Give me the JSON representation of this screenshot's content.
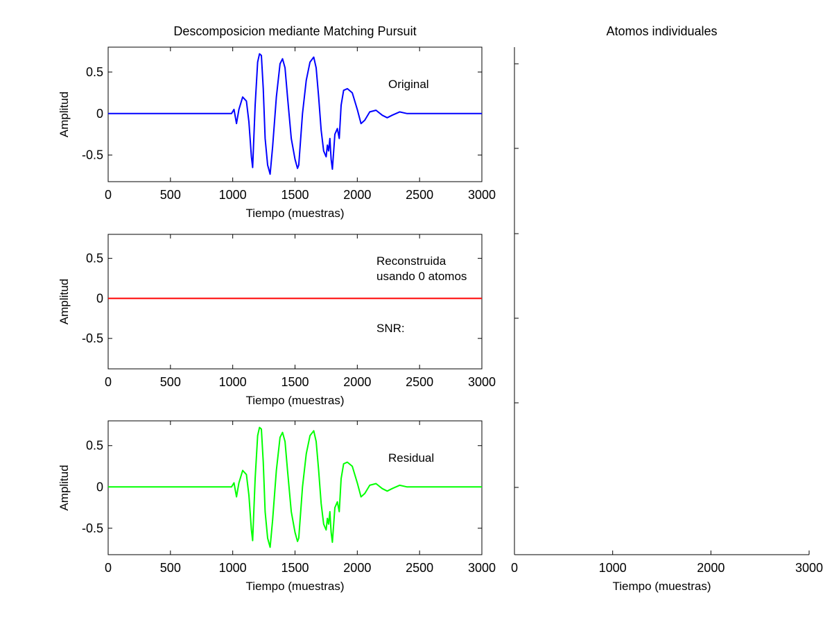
{
  "chart_data": [
    {
      "type": "line",
      "title": "Descomposicion mediante Matching Pursuit",
      "xlabel": "Tiempo (muestras)",
      "ylabel": "Amplitud",
      "xlim": [
        0,
        3000
      ],
      "ylim": [
        -0.82,
        0.8
      ],
      "xticks": [
        "0",
        "500",
        "1000",
        "1500",
        "2000",
        "2500",
        "3000"
      ],
      "yticks": [
        "0.5",
        "0",
        "-0.5"
      ],
      "annotations": [
        "Original"
      ],
      "series": [
        {
          "color": "#0000ff",
          "x": [
            0,
            950,
            990,
            1010,
            1030,
            1050,
            1080,
            1110,
            1130,
            1150,
            1160,
            1180,
            1200,
            1215,
            1230,
            1245,
            1260,
            1280,
            1300,
            1320,
            1350,
            1380,
            1400,
            1420,
            1440,
            1470,
            1500,
            1520,
            1530,
            1560,
            1590,
            1620,
            1650,
            1670,
            1690,
            1710,
            1730,
            1750,
            1760,
            1770,
            1780,
            1790,
            1800,
            1820,
            1840,
            1855,
            1870,
            1890,
            1920,
            1960,
            2000,
            2030,
            2060,
            2100,
            2150,
            2200,
            2240,
            2280,
            2340,
            2400,
            2500,
            3000
          ],
          "y": [
            0,
            0,
            0.0,
            0.05,
            -0.12,
            0.05,
            0.2,
            0.15,
            -0.1,
            -0.52,
            -0.65,
            0.1,
            0.62,
            0.72,
            0.7,
            0.3,
            -0.3,
            -0.62,
            -0.73,
            -0.4,
            0.2,
            0.6,
            0.66,
            0.55,
            0.2,
            -0.3,
            -0.55,
            -0.66,
            -0.62,
            0.0,
            0.4,
            0.62,
            0.68,
            0.55,
            0.2,
            -0.2,
            -0.45,
            -0.52,
            -0.38,
            -0.45,
            -0.3,
            -0.55,
            -0.67,
            -0.25,
            -0.18,
            -0.3,
            0.1,
            0.28,
            0.3,
            0.25,
            0.05,
            -0.12,
            -0.08,
            0.02,
            0.04,
            -0.02,
            -0.05,
            -0.02,
            0.02,
            0.0,
            0.0,
            0.0
          ]
        }
      ]
    },
    {
      "type": "line",
      "title": "",
      "xlabel": "Tiempo (muestras)",
      "ylabel": "Amplitud",
      "xlim": [
        0,
        3000
      ],
      "ylim": [
        -0.88,
        0.8
      ],
      "xticks": [
        "0",
        "500",
        "1000",
        "1500",
        "2000",
        "2500",
        "3000"
      ],
      "yticks": [
        "0.5",
        "0",
        "-0.5"
      ],
      "annotations": [
        "Reconstruida",
        "usando 0 atomos",
        "SNR:"
      ],
      "series": [
        {
          "color": "#ff0000",
          "x": [
            0,
            3000
          ],
          "y": [
            0,
            0
          ]
        }
      ]
    },
    {
      "type": "line",
      "title": "",
      "xlabel": "Tiempo (muestras)",
      "ylabel": "Amplitud",
      "xlim": [
        0,
        3000
      ],
      "ylim": [
        -0.82,
        0.8
      ],
      "xticks": [
        "0",
        "500",
        "1000",
        "1500",
        "2000",
        "2500",
        "3000"
      ],
      "yticks": [
        "0.5",
        "0",
        "-0.5"
      ],
      "annotations": [
        "Residual"
      ],
      "series": [
        {
          "color": "#00ff00",
          "x": [
            0,
            950,
            990,
            1010,
            1030,
            1050,
            1080,
            1110,
            1130,
            1150,
            1160,
            1180,
            1200,
            1215,
            1230,
            1245,
            1260,
            1280,
            1300,
            1320,
            1350,
            1380,
            1400,
            1420,
            1440,
            1470,
            1500,
            1520,
            1530,
            1560,
            1590,
            1620,
            1650,
            1670,
            1690,
            1710,
            1730,
            1750,
            1760,
            1770,
            1780,
            1790,
            1800,
            1820,
            1840,
            1855,
            1870,
            1890,
            1920,
            1960,
            2000,
            2030,
            2060,
            2100,
            2150,
            2200,
            2240,
            2280,
            2340,
            2400,
            2500,
            3000
          ],
          "y": [
            0,
            0,
            0.0,
            0.05,
            -0.12,
            0.05,
            0.2,
            0.15,
            -0.1,
            -0.52,
            -0.65,
            0.1,
            0.62,
            0.72,
            0.7,
            0.3,
            -0.3,
            -0.62,
            -0.73,
            -0.4,
            0.2,
            0.6,
            0.66,
            0.55,
            0.2,
            -0.3,
            -0.55,
            -0.66,
            -0.62,
            0.0,
            0.4,
            0.62,
            0.68,
            0.55,
            0.2,
            -0.2,
            -0.45,
            -0.52,
            -0.38,
            -0.45,
            -0.3,
            -0.55,
            -0.67,
            -0.25,
            -0.18,
            -0.3,
            0.1,
            0.28,
            0.3,
            0.25,
            0.05,
            -0.12,
            -0.08,
            0.02,
            0.04,
            -0.02,
            -0.05,
            -0.02,
            0.02,
            0.0,
            0.0,
            0.0
          ]
        }
      ]
    },
    {
      "type": "line",
      "title": "Atomos individuales",
      "xlabel": "Tiempo (muestras)",
      "ylabel": "",
      "xlim": [
        0,
        3000
      ],
      "xticks": [
        "0",
        "1000",
        "2000",
        "3000"
      ],
      "yticks": [],
      "series": []
    }
  ]
}
